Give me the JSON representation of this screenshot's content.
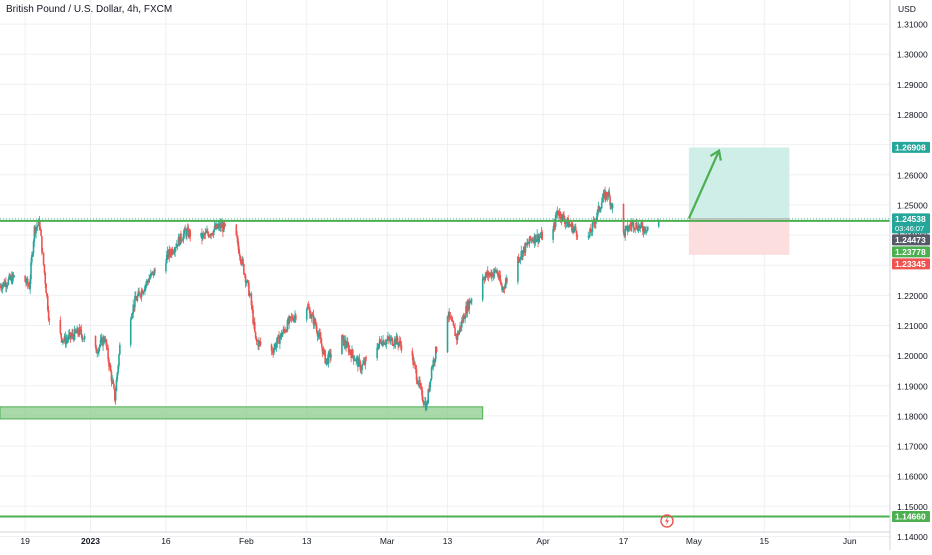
{
  "header": {
    "title": "British Pound / U.S. Dollar, 4h, FXCM"
  },
  "price_axis": {
    "unit": "USD"
  },
  "colors": {
    "up": "#26a69a",
    "down": "#ef5350",
    "level": "#4caf50",
    "zone_fill": "#8ccc8c",
    "target_zone": "#cfeee8",
    "stop_zone": "#fcdede",
    "arrow": "#4caf50",
    "grid": "#eef0f3",
    "axis_text": "#131722"
  },
  "chart_data": {
    "type": "candlestick",
    "instrument": "British Pound / U.S. Dollar",
    "timeframe": "4h",
    "source": "FXCM",
    "ylim": [
      1.1355,
      1.318
    ],
    "xlim": [
      "2022-12-14",
      "2023-06-09"
    ],
    "y_ticks": [
      "1.31000",
      "1.30000",
      "1.29000",
      "1.28000",
      "1.27000",
      "1.26000",
      "1.25000",
      "1.24000",
      "1.23000",
      "1.22000",
      "1.21000",
      "1.20000",
      "1.19000",
      "1.18000",
      "1.17000",
      "1.16000",
      "1.15000",
      "1.14000"
    ],
    "x_ticks": [
      {
        "label": "19",
        "date": "2022-12-19"
      },
      {
        "label": "2023",
        "date": "2023-01-01"
      },
      {
        "label": "16",
        "date": "2023-01-16"
      },
      {
        "label": "Feb",
        "date": "2023-02-01"
      },
      {
        "label": "13",
        "date": "2023-02-13"
      },
      {
        "label": "Mar",
        "date": "2023-03-01"
      },
      {
        "label": "13",
        "date": "2023-03-13"
      },
      {
        "label": "Apr",
        "date": "2023-04-01"
      },
      {
        "label": "17",
        "date": "2023-04-17"
      },
      {
        "label": "May",
        "date": "2023-05-01"
      },
      {
        "label": "15",
        "date": "2023-05-15"
      },
      {
        "label": "Jun",
        "date": "2023-06-01"
      }
    ],
    "price_path": [
      {
        "date": "2022-12-14",
        "price": 1.223
      },
      {
        "date": "2022-12-18",
        "price": 1.227
      },
      {
        "date": "2022-12-20",
        "price": 1.223
      },
      {
        "date": "2022-12-21",
        "price": 1.242
      },
      {
        "date": "2022-12-22",
        "price": 1.244
      },
      {
        "date": "2022-12-24",
        "price": 1.211
      },
      {
        "date": "2022-12-27",
        "price": 1.205
      },
      {
        "date": "2022-12-30",
        "price": 1.208
      },
      {
        "date": "2023-01-02",
        "price": 1.201
      },
      {
        "date": "2023-01-04",
        "price": 1.206
      },
      {
        "date": "2023-01-06",
        "price": 1.186
      },
      {
        "date": "2023-01-07",
        "price": 1.203
      },
      {
        "date": "2023-01-10",
        "price": 1.218
      },
      {
        "date": "2023-01-13",
        "price": 1.226
      },
      {
        "date": "2023-01-16",
        "price": 1.232
      },
      {
        "date": "2023-01-20",
        "price": 1.241
      },
      {
        "date": "2023-01-23",
        "price": 1.239
      },
      {
        "date": "2023-01-27",
        "price": 1.243
      },
      {
        "date": "2023-01-30",
        "price": 1.24
      },
      {
        "date": "2023-02-02",
        "price": 1.219
      },
      {
        "date": "2023-02-03",
        "price": 1.205
      },
      {
        "date": "2023-02-06",
        "price": 1.201
      },
      {
        "date": "2023-02-10",
        "price": 1.212
      },
      {
        "date": "2023-02-13",
        "price": 1.217
      },
      {
        "date": "2023-02-15",
        "price": 1.21
      },
      {
        "date": "2023-02-17",
        "price": 1.198
      },
      {
        "date": "2023-02-20",
        "price": 1.206
      },
      {
        "date": "2023-02-24",
        "price": 1.196
      },
      {
        "date": "2023-02-28",
        "price": 1.205
      },
      {
        "date": "2023-03-03",
        "price": 1.205
      },
      {
        "date": "2023-03-06",
        "price": 1.2
      },
      {
        "date": "2023-03-08",
        "price": 1.187
      },
      {
        "date": "2023-03-09",
        "price": 1.183
      },
      {
        "date": "2023-03-10",
        "price": 1.196
      },
      {
        "date": "2023-03-13",
        "price": 1.215
      },
      {
        "date": "2023-03-15",
        "price": 1.206
      },
      {
        "date": "2023-03-17",
        "price": 1.216
      },
      {
        "date": "2023-03-20",
        "price": 1.226
      },
      {
        "date": "2023-03-23",
        "price": 1.228
      },
      {
        "date": "2023-03-24",
        "price": 1.222
      },
      {
        "date": "2023-03-27",
        "price": 1.232
      },
      {
        "date": "2023-03-30",
        "price": 1.239
      },
      {
        "date": "2023-04-03",
        "price": 1.24
      },
      {
        "date": "2023-04-04",
        "price": 1.248
      },
      {
        "date": "2023-04-06",
        "price": 1.244
      },
      {
        "date": "2023-04-10",
        "price": 1.238
      },
      {
        "date": "2023-04-13",
        "price": 1.252
      },
      {
        "date": "2023-04-14",
        "price": 1.254
      },
      {
        "date": "2023-04-17",
        "price": 1.24
      },
      {
        "date": "2023-04-19",
        "price": 1.244
      },
      {
        "date": "2023-04-21",
        "price": 1.242
      },
      {
        "date": "2023-04-24",
        "price": 1.245
      }
    ],
    "horizontal_levels": [
      1.24473,
      1.1466
    ],
    "support_zone": {
      "from_date": "2022-12-14",
      "to_date": "2023-03-20",
      "low": 1.179,
      "high": 1.183
    },
    "position": {
      "start_date": "2023-04-30",
      "end_date": "2023-05-20",
      "entry": 1.24538,
      "target": 1.26908,
      "stop": 1.23345
    },
    "arrow": {
      "from_date": "2023-04-30",
      "from_price": 1.2455,
      "to_date": "2023-05-06",
      "to_price": 1.268
    },
    "price_labels": [
      {
        "value": "1.26908",
        "color": "#26a69a"
      },
      {
        "value": "1.24538",
        "sub": "03:46:07",
        "color": "#26a69a"
      },
      {
        "value": "1.24473",
        "color": "#555a66"
      },
      {
        "value": "1.23778",
        "color": "#4caf50"
      },
      {
        "value": "1.23345",
        "color": "#ef5350"
      },
      {
        "value": "1.14660",
        "color": "#4caf50"
      }
    ]
  }
}
